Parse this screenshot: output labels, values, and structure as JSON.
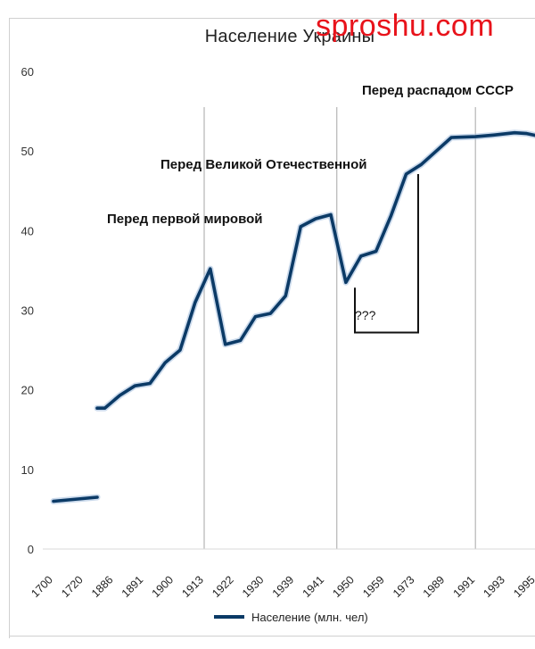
{
  "watermark": "sproshu.com",
  "chart_data": {
    "type": "line",
    "title": "Население Украины",
    "x": [
      "1700",
      "1720",
      "1886",
      "1891",
      "1900",
      "1913",
      "1922",
      "1930",
      "1939",
      "1941",
      "1950",
      "1959",
      "1973",
      "1989",
      "1991",
      "1993",
      "1995"
    ],
    "ylim": [
      0,
      60
    ],
    "yticks": [
      0,
      10,
      20,
      30,
      40,
      50,
      60
    ],
    "grid": false,
    "legend_position": "bottom",
    "series": [
      {
        "name": "Население (млн. чел)",
        "color": "#0b3a66",
        "segments": [
          [
            [
              0,
              6.0
            ],
            [
              1.45,
              6.5
            ]
          ],
          [
            [
              1.45,
              17.7
            ],
            [
              1.7,
              17.7
            ],
            [
              2.2,
              19.3
            ],
            [
              2.7,
              20.5
            ],
            [
              3.2,
              20.8
            ],
            [
              3.7,
              23.4
            ],
            [
              4.2,
              25.0
            ],
            [
              4.7,
              31.0
            ],
            [
              5.2,
              35.2
            ],
            [
              5.7,
              25.7
            ],
            [
              6.2,
              26.2
            ],
            [
              6.7,
              29.2
            ],
            [
              7.2,
              29.6
            ],
            [
              7.7,
              31.8
            ],
            [
              8.2,
              40.5
            ],
            [
              8.7,
              41.5
            ],
            [
              9.2,
              42.0
            ],
            [
              9.7,
              33.5
            ],
            [
              10.2,
              36.8
            ],
            [
              10.7,
              37.4
            ],
            [
              11.2,
              41.9
            ],
            [
              11.7,
              47.1
            ],
            [
              12.2,
              48.3
            ],
            [
              12.7,
              50.0
            ],
            [
              13.2,
              51.7
            ],
            [
              14.0,
              51.8
            ],
            [
              14.6,
              52.0
            ],
            [
              15.3,
              52.3
            ],
            [
              15.7,
              52.2
            ],
            [
              16.2,
              51.8
            ],
            [
              16.6,
              51.4
            ]
          ]
        ]
      }
    ],
    "reference_lines": [
      5.0,
      9.4,
      14.0
    ],
    "annotations": [
      {
        "text": "Перед первой мировой",
        "x": 5.0
      },
      {
        "text": "Перед Великой Отечественной",
        "x": 9.4
      },
      {
        "text": "Перед распадом СССР",
        "x": 14.0
      },
      {
        "text": "???",
        "x": 10.7
      }
    ],
    "gap_bracket": {
      "x_start": 10.0,
      "x_end": 12.1,
      "y_bottom": 27.2,
      "y_top_right": 47.1,
      "y_top_left": 33.5
    }
  }
}
